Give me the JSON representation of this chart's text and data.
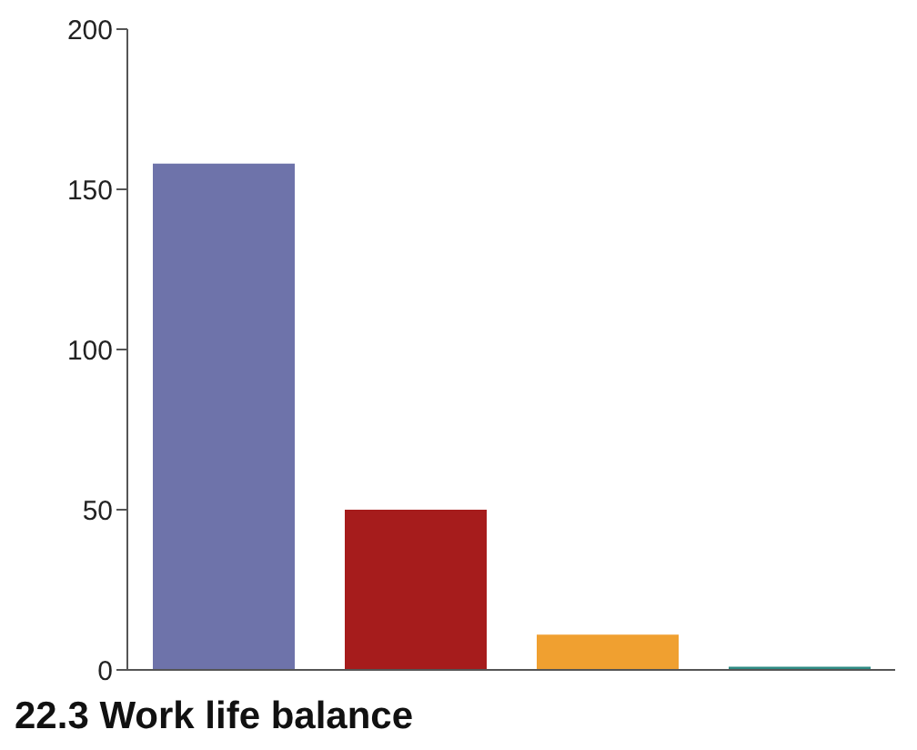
{
  "chart_data": {
    "type": "bar",
    "title": "22.3 Work life balance",
    "categories": [
      null,
      null,
      null,
      null
    ],
    "values": [
      158,
      50,
      11,
      1
    ],
    "colors": [
      "#6e73aa",
      "#a61c1c",
      "#f0a030",
      "#2e8b84"
    ],
    "ylim": [
      0,
      200
    ],
    "yticks": [
      0,
      50,
      100,
      150,
      200
    ],
    "grid": false,
    "legend": false
  }
}
